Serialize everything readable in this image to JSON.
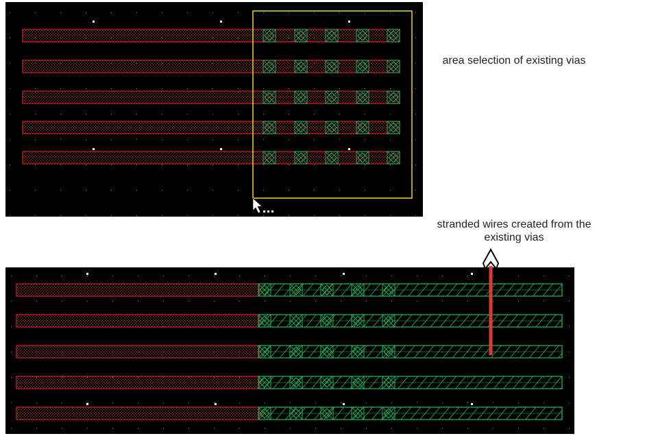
{
  "captions": {
    "area_selection": "area selection of existing vias",
    "stranded_wires": "stranded wires created from the  existing vias"
  },
  "colors": {
    "canvas_background": "#000000",
    "metal_red": "#e02020",
    "via_green": "#18c060",
    "selection_yellow": "#e8e000",
    "grid_dot": "#c8c8c8",
    "arrow_red": "#e03a30",
    "cursor_white": "#ffffff"
  },
  "icons": {
    "cursor": "mouse-pointer-icon",
    "arrow": "up-arrow-icon"
  },
  "panels": {
    "before": {
      "wire_count": 5,
      "vias_per_wire": 5,
      "selection_box": true
    },
    "after": {
      "wire_count": 5,
      "vias_per_wire": 5,
      "stranded_wire_extension": true
    }
  }
}
